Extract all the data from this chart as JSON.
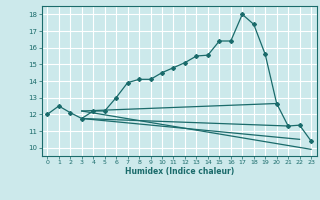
{
  "xlabel": "Humidex (Indice chaleur)",
  "bg_color": "#cce9eb",
  "grid_color": "#ffffff",
  "line_color": "#1a6b6b",
  "xlim": [
    -0.5,
    23.5
  ],
  "ylim": [
    9.5,
    18.5
  ],
  "xticks": [
    0,
    1,
    2,
    3,
    4,
    5,
    6,
    7,
    8,
    9,
    10,
    11,
    12,
    13,
    14,
    15,
    16,
    17,
    18,
    19,
    20,
    21,
    22,
    23
  ],
  "yticks": [
    10,
    11,
    12,
    13,
    14,
    15,
    16,
    17,
    18
  ],
  "main_curve_x": [
    0,
    1,
    2,
    3,
    4,
    5,
    6,
    7,
    8,
    9,
    10,
    11,
    12,
    13,
    14,
    15,
    16,
    17,
    18,
    19,
    20,
    21,
    22,
    23
  ],
  "main_curve_y": [
    12.0,
    12.5,
    12.1,
    11.75,
    12.2,
    12.2,
    13.0,
    13.9,
    14.1,
    14.1,
    14.5,
    14.8,
    15.1,
    15.5,
    15.55,
    16.4,
    16.4,
    18.0,
    17.4,
    15.6,
    12.65,
    11.3,
    11.35,
    10.4
  ],
  "line2_x": [
    3,
    23
  ],
  "line2_y": [
    12.2,
    9.9
  ],
  "line3_x": [
    3,
    22
  ],
  "line3_y": [
    11.75,
    10.5
  ],
  "line4_x": [
    3,
    21
  ],
  "line4_y": [
    11.75,
    11.3
  ],
  "line5_x": [
    3,
    20
  ],
  "line5_y": [
    12.2,
    12.65
  ]
}
